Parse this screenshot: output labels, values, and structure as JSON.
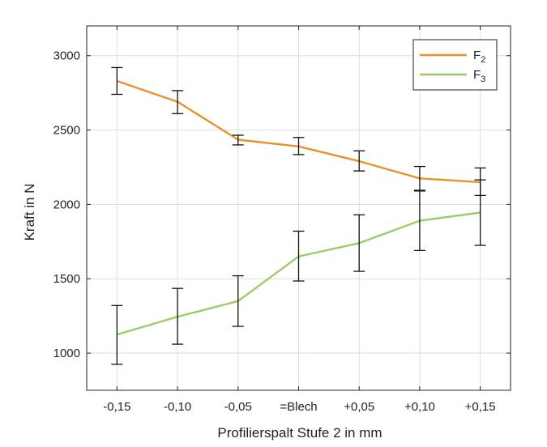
{
  "chart_data": {
    "type": "line",
    "title": "",
    "xlabel": "Profilierspalt Stufe 2 in mm",
    "ylabel": "Kraft in N",
    "categories": [
      "-0,15",
      "-0,10",
      "-0,05",
      "=Blech",
      "+0,05",
      "+0,10",
      "+0,15"
    ],
    "ylim": [
      750,
      3200
    ],
    "yticks": [
      1000,
      1500,
      2000,
      2500,
      3000
    ],
    "grid": true,
    "legend_position": "top-right",
    "series": [
      {
        "name": "F",
        "subscript": "2",
        "color": "#e8912e",
        "values": [
          2830,
          2690,
          2435,
          2390,
          2290,
          2175,
          2150
        ],
        "err_low": [
          2740,
          2610,
          2400,
          2335,
          2225,
          2090,
          2060
        ],
        "err_high": [
          2920,
          2765,
          2465,
          2450,
          2360,
          2255,
          2245
        ]
      },
      {
        "name": "F",
        "subscript": "3",
        "color": "#9ccc65",
        "values": [
          1125,
          1245,
          1350,
          1650,
          1740,
          1890,
          1945
        ],
        "err_low": [
          925,
          1060,
          1180,
          1485,
          1550,
          1690,
          1725
        ],
        "err_high": [
          1320,
          1435,
          1520,
          1820,
          1930,
          2095,
          2165
        ]
      }
    ]
  }
}
